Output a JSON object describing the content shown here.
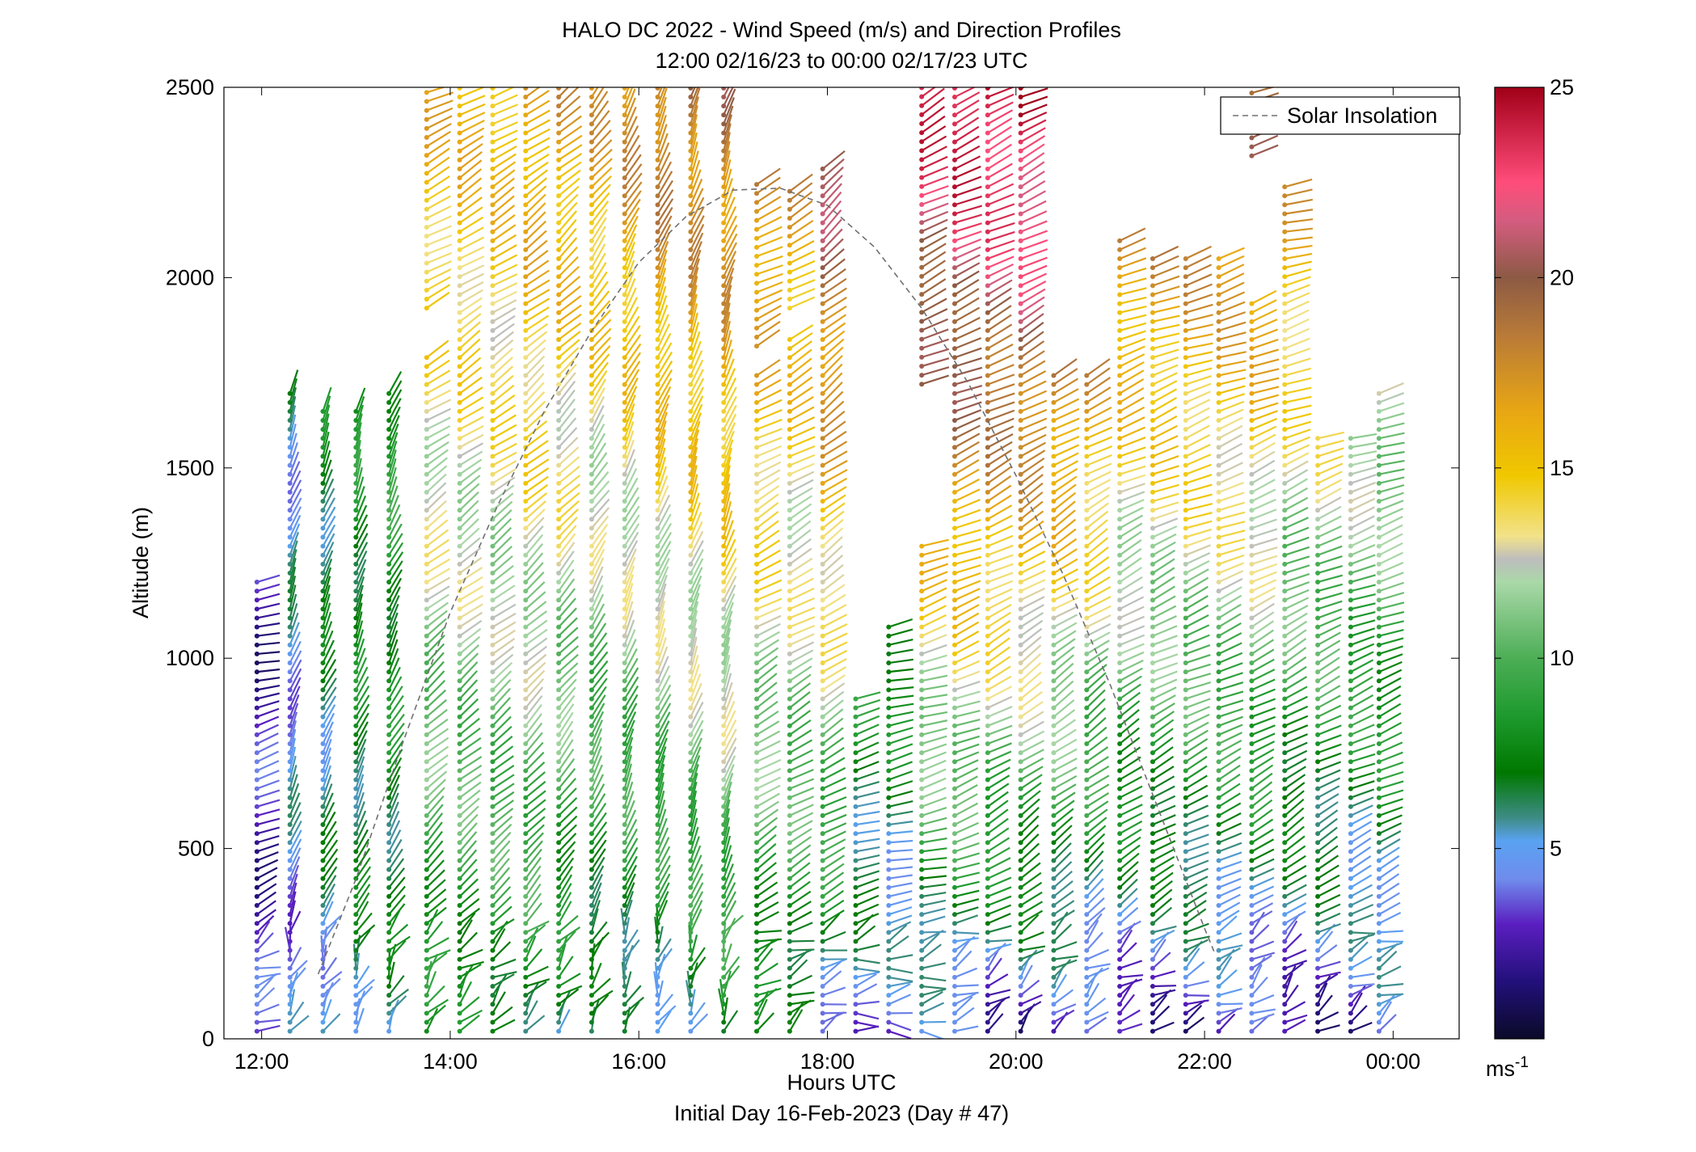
{
  "chart_data": {
    "type": "scatter",
    "title": "HALO DC 2022 - Wind Speed (m/s) and Direction Profiles",
    "subtitle": "12:00 02/16/23 to 00:00 02/17/23  UTC",
    "xlabel": "Hours UTC",
    "xlabel2": "Initial Day 16-Feb-2023 (Day # 47)",
    "ylabel": "Altitude (m)",
    "x_ticks": [
      {
        "value": 12,
        "label": "12:00"
      },
      {
        "value": 14,
        "label": "14:00"
      },
      {
        "value": 16,
        "label": "16:00"
      },
      {
        "value": 18,
        "label": "18:00"
      },
      {
        "value": 20,
        "label": "20:00"
      },
      {
        "value": 22,
        "label": "22:00"
      },
      {
        "value": 24,
        "label": "00:00"
      }
    ],
    "y_ticks": [
      {
        "value": 0,
        "label": "0"
      },
      {
        "value": 500,
        "label": "500"
      },
      {
        "value": 1000,
        "label": "1000"
      },
      {
        "value": 1500,
        "label": "1500"
      },
      {
        "value": 2000,
        "label": "2000"
      },
      {
        "value": 2500,
        "label": "2500"
      }
    ],
    "xlim": [
      11.6,
      24.7
    ],
    "ylim": [
      0,
      2500
    ],
    "legend": {
      "entries": [
        "Solar Insolation"
      ],
      "location": "top-right"
    },
    "colorbar": {
      "min": 0,
      "max": 25,
      "ticks": [
        {
          "value": 5,
          "label": "5"
        },
        {
          "value": 10,
          "label": "10"
        },
        {
          "value": 15,
          "label": "15"
        },
        {
          "value": 20,
          "label": "20"
        },
        {
          "value": 25,
          "label": "25"
        }
      ],
      "unit_label": "ms",
      "unit_exponent": "-1",
      "stops": [
        {
          "v": 0,
          "color": "#0a0a28"
        },
        {
          "v": 1.5,
          "color": "#22107a"
        },
        {
          "v": 3,
          "color": "#5a1ec0"
        },
        {
          "v": 4.2,
          "color": "#6f8cec"
        },
        {
          "v": 5.2,
          "color": "#5aa2f2"
        },
        {
          "v": 5.8,
          "color": "#3e8c86"
        },
        {
          "v": 7,
          "color": "#007800"
        },
        {
          "v": 8.5,
          "color": "#1e9a2e"
        },
        {
          "v": 10,
          "color": "#4cae56"
        },
        {
          "v": 12,
          "color": "#aad8a8"
        },
        {
          "v": 12.6,
          "color": "#bdbdbd"
        },
        {
          "v": 13.2,
          "color": "#f2e28a"
        },
        {
          "v": 14.8,
          "color": "#f0c800"
        },
        {
          "v": 16.5,
          "color": "#e8a614"
        },
        {
          "v": 18.5,
          "color": "#b87a38"
        },
        {
          "v": 20,
          "color": "#8c5a44"
        },
        {
          "v": 21.5,
          "color": "#d45c80"
        },
        {
          "v": 22.5,
          "color": "#ff4d7a"
        },
        {
          "v": 24,
          "color": "#c81e40"
        },
        {
          "v": 25,
          "color": "#a00018"
        }
      ]
    },
    "solar_insolation": {
      "x": [
        12.6,
        13.0,
        13.5,
        14.0,
        14.5,
        15.0,
        15.5,
        16.0,
        16.5,
        17.0,
        17.5,
        18.0,
        18.5,
        19.0,
        19.5,
        20.0,
        20.5,
        21.0,
        21.5,
        22.0,
        22.1
      ],
      "y": [
        170,
        420,
        780,
        1120,
        1400,
        1650,
        1860,
        2040,
        2160,
        2230,
        2235,
        2190,
        2080,
        1920,
        1720,
        1480,
        1220,
        930,
        610,
        290,
        230
      ]
    },
    "profiles": [
      {
        "t": 11.95,
        "ranges": [
          [
            0,
            1200
          ]
        ],
        "lowSpeed": 3,
        "highSpeed": 2,
        "dirLow": 235,
        "dirHigh": 290
      },
      {
        "t": 12.3,
        "ranges": [
          [
            0,
            1700
          ]
        ],
        "lowSpeed": 4,
        "highSpeed": 6,
        "dirLow": 200,
        "dirHigh": 200
      },
      {
        "t": 12.65,
        "ranges": [
          [
            0,
            1650
          ]
        ],
        "lowSpeed": 5,
        "highSpeed": 8,
        "dirLow": 210,
        "dirHigh": 195
      },
      {
        "t": 13.0,
        "ranges": [
          [
            0,
            1650
          ]
        ],
        "lowSpeed": 6,
        "highSpeed": 9,
        "dirLow": 210,
        "dirHigh": 190
      },
      {
        "t": 13.35,
        "ranges": [
          [
            0,
            1700
          ]
        ],
        "lowSpeed": 6,
        "highSpeed": 10,
        "dirLow": 215,
        "dirHigh": 195
      },
      {
        "t": 13.75,
        "ranges": [
          [
            0,
            1800
          ],
          [
            1900,
            2500
          ]
        ],
        "lowSpeed": 7,
        "highSpeed": 16,
        "dirLow": 220,
        "dirHigh": 245
      },
      {
        "t": 14.1,
        "ranges": [
          [
            0,
            2500
          ]
        ],
        "lowSpeed": 7,
        "highSpeed": 16,
        "dirLow": 225,
        "dirHigh": 240
      },
      {
        "t": 14.45,
        "ranges": [
          [
            0,
            2500
          ]
        ],
        "lowSpeed": 7,
        "highSpeed": 16,
        "dirLow": 225,
        "dirHigh": 240
      },
      {
        "t": 14.8,
        "ranges": [
          [
            0,
            2500
          ]
        ],
        "lowSpeed": 7,
        "highSpeed": 17,
        "dirLow": 220,
        "dirHigh": 235
      },
      {
        "t": 15.15,
        "ranges": [
          [
            0,
            2500
          ]
        ],
        "lowSpeed": 6,
        "highSpeed": 17,
        "dirLow": 215,
        "dirHigh": 230
      },
      {
        "t": 15.5,
        "ranges": [
          [
            0,
            2500
          ]
        ],
        "lowSpeed": 5,
        "highSpeed": 17,
        "dirLow": 205,
        "dirHigh": 220
      },
      {
        "t": 15.85,
        "ranges": [
          [
            0,
            2500
          ]
        ],
        "lowSpeed": 5,
        "highSpeed": 18,
        "dirLow": 200,
        "dirHigh": 210
      },
      {
        "t": 16.2,
        "ranges": [
          [
            0,
            2500
          ]
        ],
        "lowSpeed": 5,
        "highSpeed": 19,
        "dirLow": 200,
        "dirHigh": 205
      },
      {
        "t": 16.55,
        "ranges": [
          [
            0,
            2500
          ]
        ],
        "lowSpeed": 6,
        "highSpeed": 19,
        "dirLow": 200,
        "dirHigh": 200
      },
      {
        "t": 16.9,
        "ranges": [
          [
            0,
            2500
          ]
        ],
        "lowSpeed": 7,
        "highSpeed": 19,
        "dirLow": 200,
        "dirHigh": 200
      },
      {
        "t": 17.25,
        "ranges": [
          [
            0,
            1750
          ],
          [
            1800,
            2250
          ]
        ],
        "lowSpeed": 6,
        "highSpeed": 19,
        "dirLow": 235,
        "dirHigh": 245
      },
      {
        "t": 17.6,
        "ranges": [
          [
            0,
            1850
          ],
          [
            1900,
            2250
          ]
        ],
        "lowSpeed": 6,
        "highSpeed": 18,
        "dirLow": 240,
        "dirHigh": 240
      },
      {
        "t": 17.95,
        "ranges": [
          [
            0,
            2300
          ]
        ],
        "lowSpeed": 4,
        "highSpeed": 22,
        "dirLow": 245,
        "dirHigh": 225
      },
      {
        "t": 18.3,
        "ranges": [
          [
            0,
            900
          ]
        ],
        "lowSpeed": 4,
        "highSpeed": 13,
        "dirLow": 255,
        "dirHigh": 250
      },
      {
        "t": 18.65,
        "ranges": [
          [
            0,
            1100
          ]
        ],
        "lowSpeed": 3,
        "highSpeed": 14,
        "dirLow": 260,
        "dirHigh": 250
      },
      {
        "t": 19.0,
        "ranges": [
          [
            0,
            1300
          ],
          [
            1700,
            2500
          ]
        ],
        "lowSpeed": 3,
        "highSpeed": 24,
        "dirLow": 260,
        "dirHigh": 240
      },
      {
        "t": 19.35,
        "ranges": [
          [
            0,
            2500
          ]
        ],
        "lowSpeed": 3,
        "highSpeed": 25,
        "dirLow": 250,
        "dirHigh": 245
      },
      {
        "t": 19.7,
        "ranges": [
          [
            0,
            2500
          ]
        ],
        "lowSpeed": 2,
        "highSpeed": 25,
        "dirLow": 240,
        "dirHigh": 245
      },
      {
        "t": 20.05,
        "ranges": [
          [
            0,
            2500
          ]
        ],
        "lowSpeed": 2,
        "highSpeed": 25,
        "dirLow": 230,
        "dirHigh": 245
      },
      {
        "t": 20.4,
        "ranges": [
          [
            0,
            1750
          ]
        ],
        "lowSpeed": 2,
        "highSpeed": 24,
        "dirLow": 230,
        "dirHigh": 245
      },
      {
        "t": 20.75,
        "ranges": [
          [
            0,
            1750
          ]
        ],
        "lowSpeed": 2,
        "highSpeed": 22,
        "dirLow": 225,
        "dirHigh": 250
      },
      {
        "t": 21.1,
        "ranges": [
          [
            0,
            2100
          ]
        ],
        "lowSpeed": 2,
        "highSpeed": 20,
        "dirLow": 230,
        "dirHigh": 255
      },
      {
        "t": 21.45,
        "ranges": [
          [
            0,
            2050
          ]
        ],
        "lowSpeed": 2,
        "highSpeed": 20,
        "dirLow": 235,
        "dirHigh": 255
      },
      {
        "t": 21.8,
        "ranges": [
          [
            0,
            2050
          ]
        ],
        "lowSpeed": 2,
        "highSpeed": 20,
        "dirLow": 240,
        "dirHigh": 255
      },
      {
        "t": 22.15,
        "ranges": [
          [
            0,
            2050
          ]
        ],
        "lowSpeed": 2,
        "highSpeed": 20,
        "dirLow": 240,
        "dirHigh": 255
      },
      {
        "t": 22.5,
        "ranges": [
          [
            0,
            1950
          ],
          [
            2300,
            2500
          ]
        ],
        "lowSpeed": 2,
        "highSpeed": 20,
        "dirLow": 235,
        "dirHigh": 255
      },
      {
        "t": 22.85,
        "ranges": [
          [
            0,
            2250
          ]
        ],
        "lowSpeed": 2,
        "highSpeed": 18,
        "dirLow": 230,
        "dirHigh": 260
      },
      {
        "t": 23.2,
        "ranges": [
          [
            0,
            1600
          ]
        ],
        "lowSpeed": 2,
        "highSpeed": 18,
        "dirLow": 235,
        "dirHigh": 260
      },
      {
        "t": 23.55,
        "ranges": [
          [
            0,
            1600
          ]
        ],
        "lowSpeed": 2,
        "highSpeed": 17,
        "dirLow": 240,
        "dirHigh": 260
      },
      {
        "t": 23.85,
        "ranges": [
          [
            0,
            1700
          ]
        ],
        "lowSpeed": 3,
        "highSpeed": 16,
        "dirLow": 240,
        "dirHigh": 260
      }
    ]
  }
}
